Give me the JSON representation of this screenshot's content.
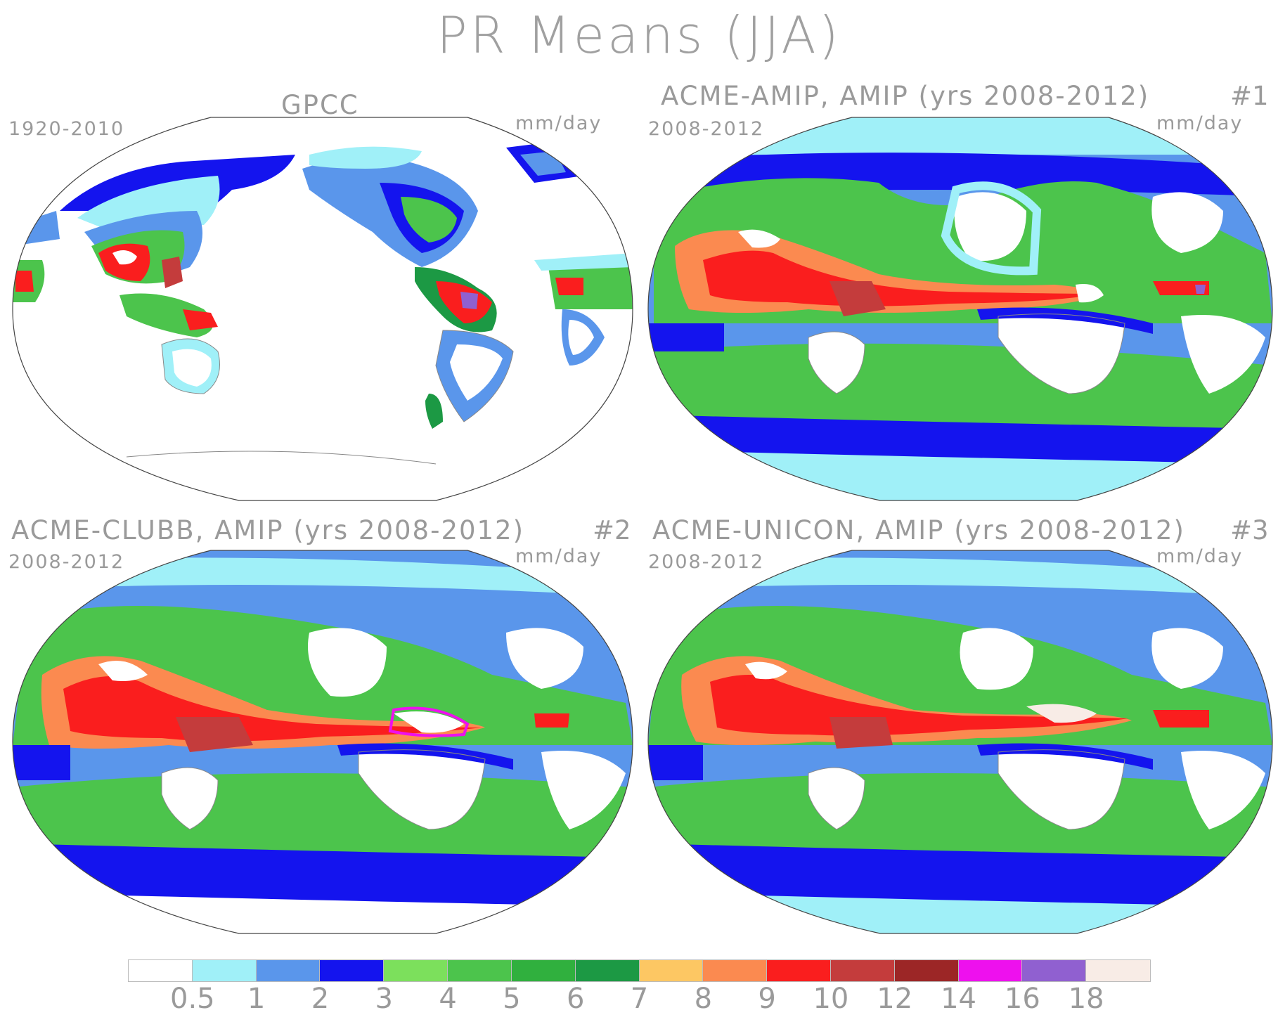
{
  "title": "PR Means (JJA)",
  "panels": [
    {
      "id": "gpcc",
      "title": "GPCC",
      "years": "1920-2010",
      "units": "mm/day",
      "number": ""
    },
    {
      "id": "amip1",
      "title": "ACME-AMIP, AMIP (yrs 2008-2012)",
      "years": "2008-2012",
      "units": "mm/day",
      "number": "#1"
    },
    {
      "id": "clubb",
      "title": "ACME-CLUBB, AMIP (yrs 2008-2012)",
      "years": "2008-2012",
      "units": "mm/day",
      "number": "#2"
    },
    {
      "id": "unicon",
      "title": "ACME-UNICON, AMIP (yrs 2008-2012)",
      "years": "2008-2012",
      "units": "mm/day",
      "number": "#3"
    }
  ],
  "colorbar": {
    "colors": [
      "#ffffff",
      "#a0f0f8",
      "#5a96eb",
      "#1414ee",
      "#7ce05c",
      "#4cc44c",
      "#30b03e",
      "#1c9944",
      "#fdc763",
      "#fb8a50",
      "#fa1e1e",
      "#c43c3c",
      "#9c2626",
      "#ee10ee",
      "#9060d0",
      "#f8ece6"
    ],
    "labels": [
      "0.5",
      "1",
      "2",
      "3",
      "4",
      "5",
      "6",
      "7",
      "8",
      "9",
      "10",
      "12",
      "14",
      "16",
      "18"
    ]
  }
}
